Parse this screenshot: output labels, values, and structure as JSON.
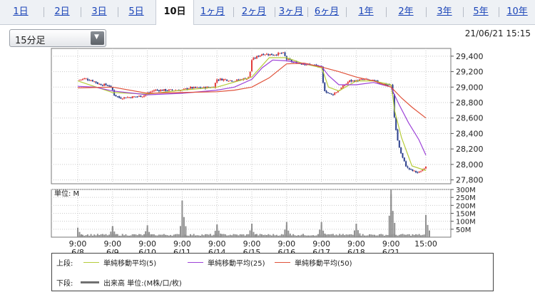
{
  "tabs": [
    {
      "label": "1日",
      "active": false
    },
    {
      "label": "2日",
      "active": false
    },
    {
      "label": "3日",
      "active": false
    },
    {
      "label": "5日",
      "active": false
    },
    {
      "label": "10日",
      "active": true
    },
    {
      "label": "1ヶ月",
      "active": false
    },
    {
      "label": "2ヶ月",
      "active": false
    },
    {
      "label": "3ヶ月",
      "active": false
    },
    {
      "label": "6ヶ月",
      "active": false
    },
    {
      "label": "1年",
      "active": false
    },
    {
      "label": "2年",
      "active": false
    },
    {
      "label": "3年",
      "active": false
    },
    {
      "label": "5年",
      "active": false
    },
    {
      "label": "10年",
      "active": false
    }
  ],
  "interval_select": {
    "value": "15分足"
  },
  "timestamp": "21/06/21 15:15",
  "legend": {
    "upper_label": "上段:",
    "lower_label": "下段:",
    "sma5": "単純移動平均(5)",
    "sma25": "単純移動平均(25)",
    "sma50": "単純移動平均(50)",
    "volume": "出来高 単位:(M株/口/枚)"
  },
  "colors": {
    "up": "#e23b3b",
    "down": "#2b3f8c",
    "sma5": "#b6cc3a",
    "sma25": "#9d42d8",
    "sma50": "#e0523a",
    "volume": "#909090",
    "grid": "#c9c9c9"
  },
  "chart_data": [
    {
      "type": "candlestick",
      "ylim": [
        27750,
        29500
      ],
      "yticks": [
        27800,
        28000,
        28200,
        28400,
        28600,
        28800,
        29000,
        29200,
        29400
      ],
      "ytick_labels": [
        "27,800",
        "28,000",
        "28,200",
        "28,400",
        "28,600",
        "28,800",
        "29,000",
        "29,200",
        "29,400"
      ],
      "x_positions": [
        "6/8 9:00",
        "6/9 9:00",
        "6/10 9:00",
        "6/11 9:00",
        "6/14 9:00",
        "6/15 9:00",
        "6/16 9:00",
        "6/17 9:00",
        "6/18 9:00",
        "6/21 9:00",
        "6/21 15:00"
      ],
      "price_path": {
        "x": [
          0,
          0.2,
          0.45,
          0.6,
          0.9,
          1.0,
          1.05,
          1.2,
          1.5,
          1.75,
          1.9,
          2.0,
          2.2,
          2.5,
          3.0,
          3.2,
          3.5,
          3.9,
          4.0,
          4.2,
          4.5,
          4.9,
          4.97,
          5.0,
          5.1,
          5.3,
          5.6,
          5.9,
          6.0,
          6.2,
          6.5,
          6.8,
          7.0,
          7.05,
          7.1,
          7.3,
          7.5,
          7.8,
          8.0,
          8.2,
          8.5,
          8.8,
          9.0,
          9.05,
          9.1,
          9.2,
          9.3,
          9.45,
          9.6,
          9.8,
          10.0
        ],
        "y": [
          29090,
          29110,
          29080,
          29040,
          29020,
          28960,
          28900,
          28860,
          28870,
          28880,
          28890,
          28920,
          28960,
          28960,
          28960,
          28990,
          28990,
          29000,
          29100,
          29100,
          29080,
          29120,
          29230,
          29350,
          29380,
          29430,
          29420,
          29440,
          29360,
          29320,
          29300,
          29280,
          29250,
          29040,
          28950,
          28900,
          28960,
          29080,
          29080,
          29100,
          29080,
          29040,
          29020,
          28900,
          28580,
          28280,
          28120,
          27960,
          27920,
          27890,
          27980
        ]
      },
      "series": [
        {
          "name": "単純移動平均(5)",
          "x": [
            0,
            1,
            2,
            3,
            4,
            5,
            5.5,
            6,
            6.5,
            7,
            7.05,
            7.2,
            7.5,
            8,
            8.5,
            9,
            9.05,
            9.1,
            9.3,
            9.6,
            10
          ],
          "y": [
            29080,
            28930,
            28910,
            28960,
            29000,
            29130,
            29380,
            29380,
            29300,
            29250,
            29200,
            29000,
            28950,
            29080,
            29080,
            29030,
            28880,
            28700,
            28350,
            27980,
            27920
          ]
        },
        {
          "name": "単純移動平均(25)",
          "x": [
            0,
            0.5,
            1,
            2,
            3,
            4,
            4.5,
            5,
            5.3,
            5.6,
            6,
            6.5,
            7,
            7.2,
            7.5,
            8,
            8.5,
            9,
            9.2,
            9.5,
            9.8,
            10
          ],
          "y": [
            29010,
            29000,
            28950,
            28900,
            28920,
            28960,
            29000,
            29100,
            29250,
            29350,
            29340,
            29300,
            29270,
            29150,
            29030,
            29030,
            29060,
            29000,
            28800,
            28540,
            28320,
            28120
          ]
        },
        {
          "name": "単純移動平均(50)",
          "x": [
            0,
            1,
            2,
            3,
            4,
            4.5,
            5,
            5.5,
            6,
            6.5,
            7,
            7.5,
            8,
            8.5,
            9,
            9.3,
            9.6,
            10
          ],
          "y": [
            28990,
            29000,
            28920,
            28930,
            28940,
            28960,
            29000,
            29120,
            29300,
            29310,
            29260,
            29200,
            29130,
            29080,
            29000,
            28860,
            28740,
            28600
          ]
        }
      ]
    },
    {
      "type": "bar",
      "title": "",
      "ylabel": "単位: M",
      "ylim": [
        0,
        300
      ],
      "yticks": [
        50,
        100,
        150,
        200,
        250,
        300
      ],
      "ytick_labels": [
        "50M",
        "100M",
        "150M",
        "200M",
        "250M",
        "300M"
      ],
      "session_open_volumes": [
        {
          "x": 0,
          "v": 60
        },
        {
          "x": 1,
          "v": 65
        },
        {
          "x": 2,
          "v": 60
        },
        {
          "x": 3,
          "v": 230
        },
        {
          "x": 4,
          "v": 75
        },
        {
          "x": 5,
          "v": 60
        },
        {
          "x": 6,
          "v": 75
        },
        {
          "x": 7,
          "v": 75
        },
        {
          "x": 8,
          "v": 80
        },
        {
          "x": 9,
          "v": 300
        },
        {
          "x": 10,
          "v": 140
        }
      ],
      "session_close_volumes": [
        {
          "x": 0.95,
          "v": 70
        },
        {
          "x": 1.95,
          "v": 75
        },
        {
          "x": 2.95,
          "v": 140
        },
        {
          "x": 3.95,
          "v": 80
        },
        {
          "x": 4.95,
          "v": 85
        },
        {
          "x": 5.95,
          "v": 95
        },
        {
          "x": 6.95,
          "v": 95
        },
        {
          "x": 7.95,
          "v": 85
        },
        {
          "x": 8.95,
          "v": 270
        }
      ],
      "baseline_volume": 15
    }
  ],
  "x_axis": {
    "tick_times": [
      "9:00",
      "9:00",
      "9:00",
      "9:00",
      "9:00",
      "9:00",
      "9:00",
      "9:00",
      "9:00",
      "9:00",
      "15:00"
    ],
    "tick_dates": [
      "6/8",
      "6/9",
      "6/10",
      "6/11",
      "6/14",
      "6/15",
      "6/16",
      "6/17",
      "6/18",
      "6/21",
      ""
    ]
  }
}
